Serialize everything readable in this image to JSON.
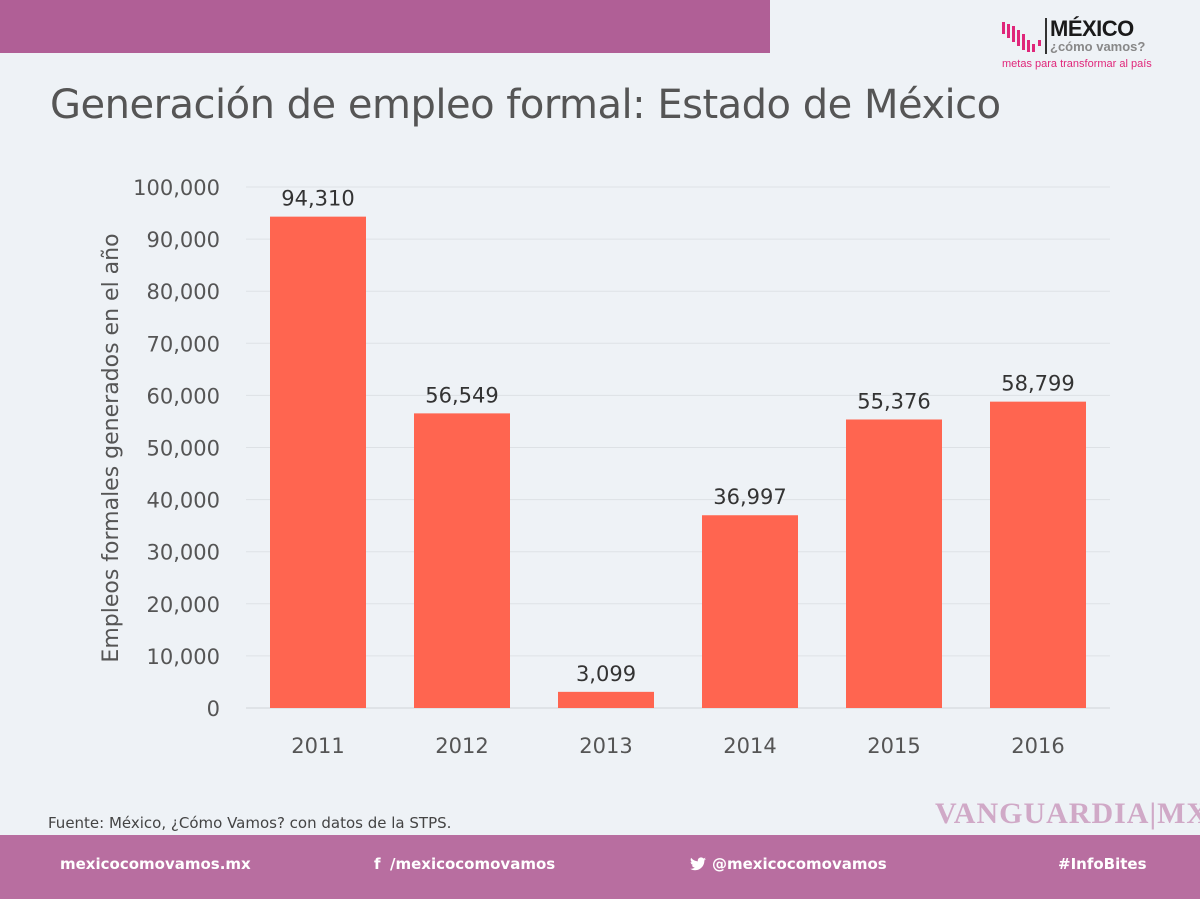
{
  "header": {
    "title": "Generación de empleo formal: Estado de México"
  },
  "logo": {
    "name": "MÉXICO",
    "sub": "¿cómo vamos?",
    "tagline": "metas para transformar al país"
  },
  "colors": {
    "bar": "#ff6550",
    "topbar": "#b05f96",
    "footer": "#b86ea0",
    "background": "#eef2f6"
  },
  "chart_data": {
    "type": "bar",
    "title": "Generación de empleo formal: Estado de México",
    "xlabel": "",
    "ylabel": "Empleos formales generados en el año",
    "categories": [
      "2011",
      "2012",
      "2013",
      "2014",
      "2015",
      "2016"
    ],
    "values": [
      94310,
      56549,
      3099,
      36997,
      55376,
      58799
    ],
    "data_labels": [
      "94,310",
      "56,549",
      "3,099",
      "36,997",
      "55,376",
      "58,799"
    ],
    "ylim": [
      0,
      100000
    ],
    "yticks": [
      "0",
      "10,000",
      "20,000",
      "30,000",
      "40,000",
      "50,000",
      "60,000",
      "70,000",
      "80,000",
      "90,000",
      "100,000"
    ],
    "grid": true
  },
  "source": "Fuente: México, ¿Cómo Vamos? con datos de la STPS.",
  "footer": {
    "website": "mexicocomovamos.mx",
    "facebook": "/mexicocomovamos",
    "twitter": "@mexicocomovamos",
    "hashtag": "#InfoBites",
    "facebook_icon": "f",
    "twitter_icon": "twitter-bird"
  },
  "watermark": "VANGUARDIA|MX"
}
